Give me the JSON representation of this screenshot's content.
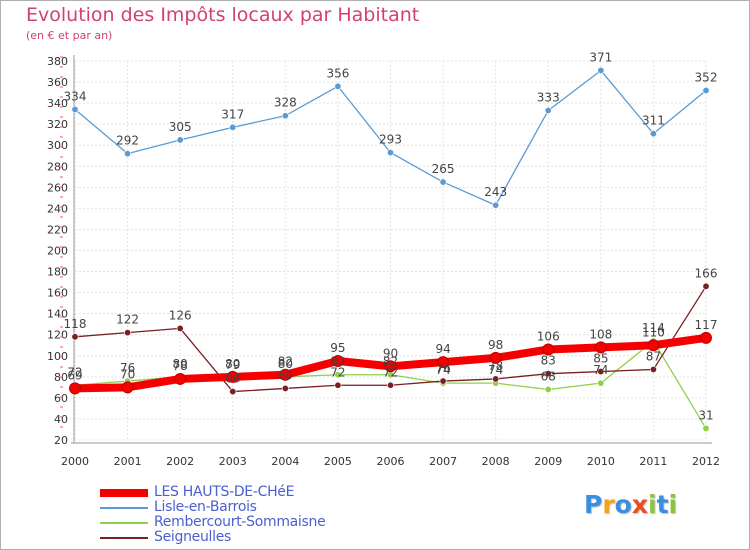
{
  "title": "Evolution des Impôts locaux par Habitant",
  "subtitle": "(en € et par an)",
  "logo": {
    "text": "Proxiti",
    "letters": [
      "P",
      "r",
      "o",
      "x",
      "i",
      "t",
      "i"
    ],
    "colors": [
      "#3a8ee0",
      "#f2a31b",
      "#3a8ee0",
      "#e8501e",
      "#8bc53f",
      "#3a8ee0",
      "#8bc53f"
    ]
  },
  "chart_data": {
    "type": "line",
    "x": [
      "2000",
      "2001",
      "2002",
      "2003",
      "2004",
      "2005",
      "2006",
      "2007",
      "2008",
      "2009",
      "2010",
      "2011",
      "2012"
    ],
    "ylim": [
      20,
      380
    ],
    "yticks": [
      20,
      40,
      60,
      80,
      100,
      120,
      140,
      160,
      180,
      200,
      220,
      240,
      260,
      280,
      300,
      320,
      340,
      360,
      380
    ],
    "grid": true,
    "legend_position": "bottom-left",
    "series": [
      {
        "name": "Lisle-en-Barrois",
        "color": "#5b9bd5",
        "values": [
          334,
          292,
          305,
          317,
          328,
          356,
          293,
          265,
          243,
          333,
          371,
          311,
          352
        ],
        "labels": [
          "334",
          "292",
          "305",
          "317",
          "328",
          "356",
          "293",
          "265",
          "243",
          "333",
          "371",
          "311",
          "352"
        ]
      },
      {
        "name": "Rembercourt-Sommaisne",
        "color": "#8ed04a",
        "values": [
          72,
          76,
          80,
          79,
          80,
          82,
          82,
          74,
          74,
          68,
          74,
          114,
          31
        ],
        "labels": [
          "72",
          "76",
          "80",
          "79",
          "80",
          "82",
          "82",
          "74",
          "74",
          "68",
          "74",
          "114",
          "31"
        ]
      },
      {
        "name": "Seigneulles",
        "color": "#7a1f22",
        "values": [
          118,
          122,
          126,
          66,
          69,
          72,
          72,
          76,
          78,
          83,
          85,
          87,
          166
        ],
        "labels": [
          "118",
          "122",
          "126",
          "66",
          "69",
          "72",
          "72",
          "76",
          "78",
          "83",
          "85",
          "87",
          "166"
        ]
      },
      {
        "name": "LES HAUTS-DE-CHéE",
        "color": "#f50000",
        "values": [
          69,
          70,
          78,
          80,
          82,
          95,
          90,
          94,
          98,
          106,
          108,
          110,
          117
        ],
        "labels": [
          "69",
          "70",
          "78",
          "80",
          "82",
          "95",
          "90",
          "94",
          "98",
          "106",
          "108",
          "110",
          "117"
        ]
      }
    ]
  },
  "legend": [
    {
      "label": "LES HAUTS-DE-CHéE",
      "color": "#f50000"
    },
    {
      "label": "Lisle-en-Barrois",
      "color": "#5b9bd5"
    },
    {
      "label": "Rembercourt-Sommaisne",
      "color": "#8ed04a"
    },
    {
      "label": "Seigneulles",
      "color": "#7a1f22"
    }
  ]
}
